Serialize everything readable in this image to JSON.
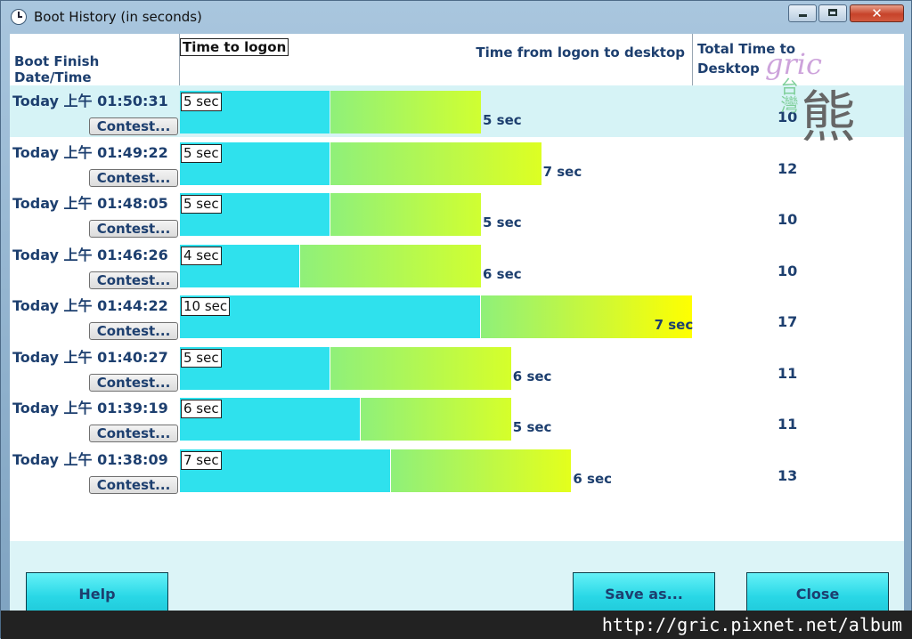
{
  "window": {
    "title": "Boot History (in seconds)"
  },
  "columns": {
    "date": "Boot Finish Date/Time",
    "logon": "Time to logon",
    "desktop": "Time from logon to desktop",
    "total_line1": "Total Time to",
    "total_line2": "Desktop"
  },
  "rows": [
    {
      "date": "Today  上午 01:50:31",
      "contest": "Contest...",
      "logon_sec": 5,
      "logon_label": "5 sec",
      "desktop_sec": 5,
      "desktop_label": "5 sec",
      "total": "10"
    },
    {
      "date": "Today  上午 01:49:22",
      "contest": "Contest...",
      "logon_sec": 5,
      "logon_label": "5 sec",
      "desktop_sec": 7,
      "desktop_label": "7 sec",
      "total": "12"
    },
    {
      "date": "Today  上午 01:48:05",
      "contest": "Contest...",
      "logon_sec": 5,
      "logon_label": "5 sec",
      "desktop_sec": 5,
      "desktop_label": "5 sec",
      "total": "10"
    },
    {
      "date": "Today  上午 01:46:26",
      "contest": "Contest...",
      "logon_sec": 4,
      "logon_label": "4 sec",
      "desktop_sec": 6,
      "desktop_label": "6 sec",
      "total": "10"
    },
    {
      "date": "Today  上午 01:44:22",
      "contest": "Contest...",
      "logon_sec": 10,
      "logon_label": "10 sec",
      "desktop_sec": 7,
      "desktop_label": "7 sec",
      "total": "17"
    },
    {
      "date": "Today  上午 01:40:27",
      "contest": "Contest...",
      "logon_sec": 5,
      "logon_label": "5 sec",
      "desktop_sec": 6,
      "desktop_label": "6 sec",
      "total": "11"
    },
    {
      "date": "Today  上午 01:39:19",
      "contest": "Contest...",
      "logon_sec": 6,
      "logon_label": "6 sec",
      "desktop_sec": 5,
      "desktop_label": "5 sec",
      "total": "11"
    },
    {
      "date": "Today  上午 01:38:09",
      "contest": "Contest...",
      "logon_sec": 7,
      "logon_label": "7 sec",
      "desktop_sec": 6,
      "desktop_label": "6 sec",
      "total": "13"
    }
  ],
  "buttons": {
    "help": "Help",
    "save": "Save as...",
    "close": "Close"
  },
  "watermark": {
    "url": "http://gric.pixnet.net/album",
    "logo_text": "gric",
    "logo_cn_small": "台灣",
    "logo_cn_big": "熊"
  },
  "colors": {
    "logon_bar": "#2fe1ed",
    "desktop_start": "#8ff07a",
    "desktop_end": "#ffff00",
    "accent_text": "#1d3f6f"
  }
}
